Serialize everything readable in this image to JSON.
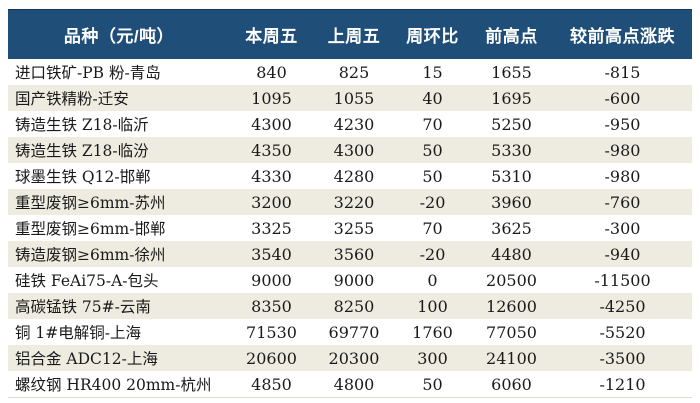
{
  "chart_data": {
    "type": "table",
    "title": "",
    "columns": [
      "品种（元/吨）",
      "本周五",
      "上周五",
      "周环比",
      "前高点",
      "较前高点涨跌"
    ],
    "rows": [
      [
        "进口铁矿-PB 粉-青岛",
        "840",
        "825",
        "15",
        "1655",
        "-815"
      ],
      [
        "国产铁精粉-迁安",
        "1095",
        "1055",
        "40",
        "1695",
        "-600"
      ],
      [
        "铸造生铁 Z18-临沂",
        "4300",
        "4230",
        "70",
        "5250",
        "-950"
      ],
      [
        "铸造生铁 Z18-临汾",
        "4350",
        "4300",
        "50",
        "5330",
        "-980"
      ],
      [
        "球墨生铁 Q12-邯郸",
        "4330",
        "4280",
        "50",
        "5310",
        "-980"
      ],
      [
        "重型废钢≥6mm-苏州",
        "3200",
        "3220",
        "-20",
        "3960",
        "-760"
      ],
      [
        "重型废钢≥6mm-邯郸",
        "3325",
        "3255",
        "70",
        "3625",
        "-300"
      ],
      [
        "铸造废钢≥6mm-徐州",
        "3540",
        "3560",
        "-20",
        "4480",
        "-940"
      ],
      [
        "硅铁 FeAi75-A-包头",
        "9000",
        "9000",
        "0",
        "20500",
        "-11500"
      ],
      [
        "高碳锰铁 75#-云南",
        "8350",
        "8250",
        "100",
        "12600",
        "-4250"
      ],
      [
        "铜 1#电解铜-上海",
        "71530",
        "69770",
        "1760",
        "77050",
        "-5520"
      ],
      [
        "铝合金 ADC12-上海",
        "20600",
        "20300",
        "300",
        "24100",
        "-3500"
      ],
      [
        "螺纹钢 HR400 20mm-杭州",
        "4850",
        "4800",
        "50",
        "6060",
        "-1210"
      ]
    ]
  },
  "colors": {
    "header_bg": "#1F4E79",
    "header_top_border": "#17375E",
    "header_text": "#FFFFFF",
    "row_bg": "#FFFFFF",
    "row_alt_bg": "#EEECE1",
    "body_text": "#1A1A1A"
  }
}
